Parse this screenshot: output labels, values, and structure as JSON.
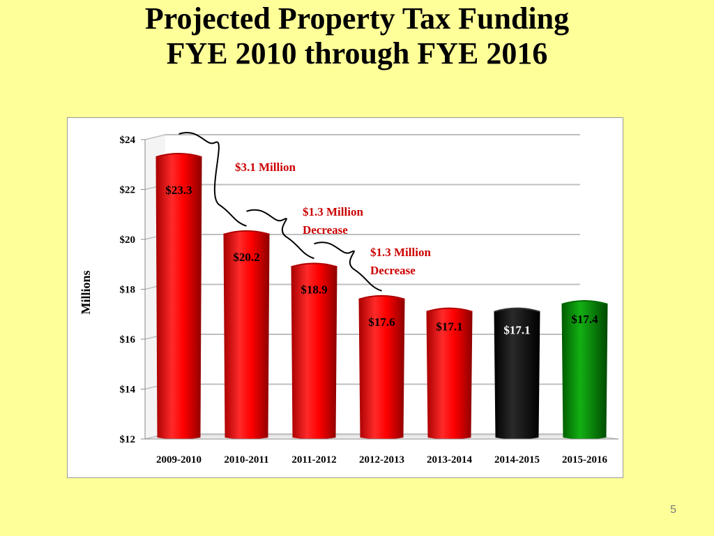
{
  "slide": {
    "title_line1": "Projected Property Tax Funding",
    "title_line2": "FYE 2010 through FYE 2016",
    "page_number": "5"
  },
  "chart_data": {
    "type": "bar",
    "categories": [
      "2009-2010",
      "2010-2011",
      "2011-2012",
      "2012-2013",
      "2013-2014",
      "2014-2015",
      "2015-2016"
    ],
    "values": [
      23.3,
      20.2,
      18.9,
      17.6,
      17.1,
      17.1,
      17.4
    ],
    "data_labels": [
      "$23.3",
      "$20.2",
      "$18.9",
      "$17.6",
      "$17.1",
      "$17.1",
      "$17.4"
    ],
    "bar_colors": [
      "#ff0000",
      "#ff0000",
      "#ff0000",
      "#ff0000",
      "#ff0000",
      "#000000",
      "#009900"
    ],
    "ylabel": "Millions",
    "ylim": [
      12,
      24
    ],
    "yticks": [
      12,
      14,
      16,
      18,
      20,
      22,
      24
    ],
    "ytick_labels": [
      "$12",
      "$14",
      "$16",
      "$18",
      "$20",
      "$22",
      "$24"
    ],
    "grid": true,
    "annotations": [
      {
        "text_line1": "$3.1 Million",
        "text_line2": "",
        "from_index": 0,
        "to_index": 1
      },
      {
        "text_line1": "$1.3 Million",
        "text_line2": "Decrease",
        "from_index": 1,
        "to_index": 2
      },
      {
        "text_line1": "$1.3 Million",
        "text_line2": "Decrease",
        "from_index": 2,
        "to_index": 3
      }
    ],
    "annotation_color": "#cc0000"
  }
}
